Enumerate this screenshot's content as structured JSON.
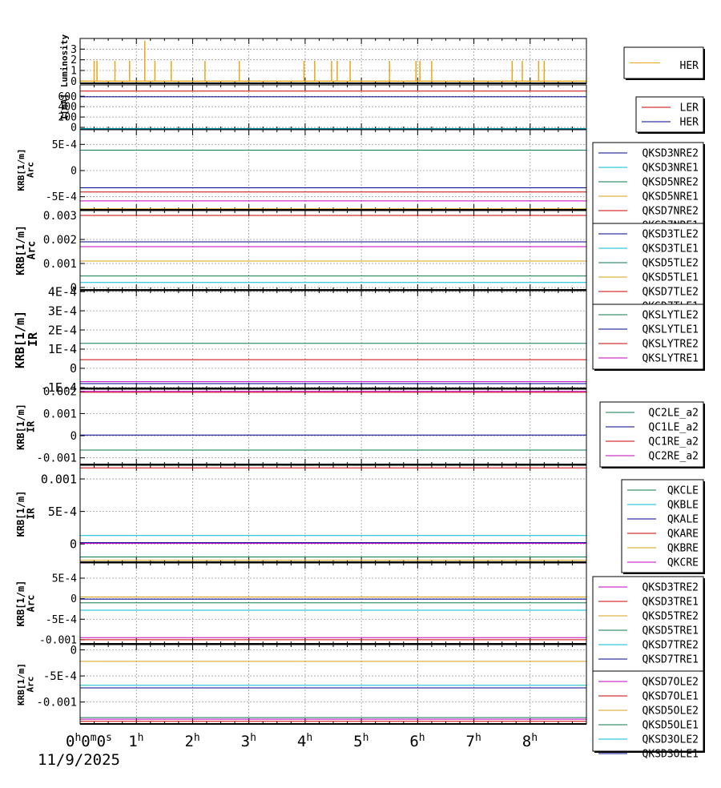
{
  "date_label": "11/9/2025",
  "x_ticks": [
    "0h0m0s",
    "1h",
    "2h",
    "3h",
    "4h",
    "5h",
    "6h",
    "7h",
    "8h"
  ],
  "chart_data": [
    {
      "type": "line",
      "ylabel": "Luminosity",
      "ylim": [
        -0.2,
        4.0
      ],
      "yticks": [
        "0",
        "1",
        "2",
        "3"
      ],
      "ytick_values": [
        0,
        1,
        2,
        3
      ],
      "xlim_hours": [
        0,
        9
      ],
      "grid": true,
      "legend_position": "right",
      "series": [
        {
          "name": "HER",
          "color": "#e6a817",
          "style": "spikes",
          "spikes": [
            [
              0.25,
              1.9
            ],
            [
              0.3,
              1.9
            ],
            [
              0.62,
              1.9
            ],
            [
              0.88,
              1.9
            ],
            [
              1.15,
              3.8
            ],
            [
              1.33,
              1.9
            ],
            [
              1.62,
              1.9
            ],
            [
              2.22,
              1.9
            ],
            [
              2.83,
              1.9
            ],
            [
              3.98,
              1.9
            ],
            [
              4.17,
              1.9
            ],
            [
              4.47,
              1.9
            ],
            [
              4.57,
              1.9
            ],
            [
              4.8,
              1.9
            ],
            [
              5.5,
              1.9
            ],
            [
              5.97,
              1.9
            ],
            [
              6.04,
              1.9
            ],
            [
              6.25,
              1.9
            ],
            [
              7.68,
              1.9
            ],
            [
              7.86,
              1.9
            ],
            [
              8.15,
              1.9
            ],
            [
              8.25,
              1.9
            ]
          ]
        }
      ]
    },
    {
      "type": "line",
      "ylabel": "I[mA]",
      "ylim": [
        -30,
        820
      ],
      "yticks": [
        "0",
        "200",
        "400",
        "600"
      ],
      "ytick_values": [
        0,
        200,
        400,
        600
      ],
      "xlim_hours": [
        0,
        9
      ],
      "grid": true,
      "legend_position": "right",
      "series": [
        {
          "name": "LER",
          "color": "#cc0000",
          "value": 700
        },
        {
          "name": "HER",
          "color": "#00008b",
          "value": 590
        }
      ]
    },
    {
      "type": "line",
      "ylabel": "KRB[1/m] Arc",
      "ylim": [
        -0.00075,
        0.00078
      ],
      "yticks": [
        "5E-4",
        "0",
        "-5E-4"
      ],
      "ytick_values": [
        0.0005,
        0,
        -0.0005
      ],
      "xlim_hours": [
        0,
        9
      ],
      "grid": true,
      "legend_position": "right",
      "series": [
        {
          "name": "QKSD3NRE2",
          "color": "#00008b",
          "value": -0.00033
        },
        {
          "name": "QKSD3NRE1",
          "color": "#00bcd4",
          "value": 0.0008
        },
        {
          "name": "QKSD5NRE2",
          "color": "#0f7a4a",
          "value": 0.00039
        },
        {
          "name": "QKSD5NRE1",
          "color": "#d4a017",
          "value": -0.00073
        },
        {
          "name": "QKSD7NRE2",
          "color": "#cc0000",
          "value": -0.00041
        },
        {
          "name": "QKSD7NRE1",
          "color": "#c000c0",
          "value": -0.00058
        }
      ]
    },
    {
      "type": "line",
      "ylabel": "KRB[1/m] Arc",
      "ylim": [
        -0.0001,
        0.0032
      ],
      "yticks": [
        "0.003",
        "0.002",
        "0.001",
        "0"
      ],
      "ytick_values": [
        0.003,
        0.002,
        0.001,
        0
      ],
      "xlim_hours": [
        0,
        9
      ],
      "grid": true,
      "legend_position": "right",
      "series": [
        {
          "name": "QKSD3TLE2",
          "color": "#00008b",
          "value": 0.0019
        },
        {
          "name": "QKSD3TLE1",
          "color": "#00bcd4",
          "value": 0.00021
        },
        {
          "name": "QKSD5TLE2",
          "color": "#0f7a4a",
          "value": 0.00048
        },
        {
          "name": "QKSD5TLE1",
          "color": "#d4a017",
          "value": 0.0011
        },
        {
          "name": "QKSD7TLE2",
          "color": "#cc0000",
          "value": 0.003
        },
        {
          "name": "QKSD7TLE1",
          "color": "#c000c0",
          "value": 0.0017
        }
      ]
    },
    {
      "type": "line",
      "ylabel": "KRB[1/m] IR",
      "ylim": [
        -0.000105,
        0.000405
      ],
      "yticks": [
        "4E-4",
        "3E-4",
        "2E-4",
        "1E-4",
        "0",
        "-1E-4"
      ],
      "ytick_values": [
        0.0004,
        0.0003,
        0.0002,
        0.0001,
        0,
        -0.0001
      ],
      "xlim_hours": [
        0,
        9
      ],
      "grid": true,
      "legend_position": "right",
      "series": [
        {
          "name": "QKSLYTLE2",
          "color": "#0f7a4a",
          "value": 0.00013
        },
        {
          "name": "QKSLYTLE1",
          "color": "#00008b",
          "value": -8e-05
        },
        {
          "name": "QKSLYTRE2",
          "color": "#cc0000",
          "value": 4.5e-05
        },
        {
          "name": "QKSLYTRE1",
          "color": "#c000c0",
          "value": -7e-05
        }
      ]
    },
    {
      "type": "line",
      "ylabel": "KRB[1/m] IR",
      "ylim": [
        -0.0013,
        0.0021
      ],
      "yticks": [
        "0.002",
        "0.001",
        "0",
        "-0.001"
      ],
      "ytick_values": [
        0.002,
        0.001,
        0,
        -0.001
      ],
      "xlim_hours": [
        0,
        9
      ],
      "grid": true,
      "legend_position": "right",
      "series": [
        {
          "name": "QC2LE_a2",
          "color": "#0f7a4a",
          "value": -0.00065
        },
        {
          "name": "QC1LE_a2",
          "color": "#00008b",
          "value": 3e-05
        },
        {
          "name": "QC1RE_a2",
          "color": "#cc0000",
          "value": 0.00196
        },
        {
          "name": "QC2RE_a2",
          "color": "#c000c0",
          "value": 0.002
        }
      ]
    },
    {
      "type": "line",
      "ylabel": "KRB[1/m] IR",
      "ylim": [
        -0.00028,
        0.00121
      ],
      "yticks": [
        "0.001",
        "5E-4",
        "0"
      ],
      "ytick_values": [
        0.001,
        0.0005,
        0
      ],
      "xlim_hours": [
        0,
        9
      ],
      "grid": true,
      "legend_position": "right",
      "series": [
        {
          "name": "QKCLE",
          "color": "#0f7a4a",
          "value": -0.0002
        },
        {
          "name": "QKBLE",
          "color": "#00bcd4",
          "value": 0.00013
        },
        {
          "name": "QKALE",
          "color": "#00008b",
          "value": 2e-05
        },
        {
          "name": "QKARE",
          "color": "#cc0000",
          "value": 0.00117
        },
        {
          "name": "QKBRE",
          "color": "#d4a017",
          "value": -0.00025
        },
        {
          "name": "QKCRE",
          "color": "#c000c0",
          "value": 1e-05
        }
      ]
    },
    {
      "type": "line",
      "ylabel": "KRB[1/m] Arc",
      "ylim": [
        -0.0011,
        0.00087
      ],
      "yticks": [
        "5E-4",
        "0",
        "-5E-4",
        "-0.001"
      ],
      "ytick_values": [
        0.0005,
        0,
        -0.0005,
        -0.001
      ],
      "xlim_hours": [
        0,
        9
      ],
      "grid": true,
      "legend_position": "right",
      "series": [
        {
          "name": "QKSD3TRE2",
          "color": "#c000c0",
          "value": -0.00095
        },
        {
          "name": "QKSD3TRE1",
          "color": "#cc0000",
          "value": -0.001
        },
        {
          "name": "QKSD5TRE2",
          "color": "#d4a017",
          "value": 4e-05
        },
        {
          "name": "QKSD5TRE1",
          "color": "#0f7a4a",
          "value": -0.0001
        },
        {
          "name": "QKSD7TRE2",
          "color": "#00bcd4",
          "value": -0.00028
        },
        {
          "name": "QKSD7TRE1",
          "color": "#00008b",
          "value": -1e-05
        }
      ]
    },
    {
      "type": "line",
      "ylabel": "KRB[1/m] Arc",
      "ylim": [
        -0.00142,
        0.0001
      ],
      "yticks": [
        "0",
        "-5E-4",
        "-0.001"
      ],
      "ytick_values": [
        0,
        -0.0005,
        -0.001
      ],
      "xlim_hours": [
        0,
        9
      ],
      "grid": true,
      "legend_position": "right",
      "series": [
        {
          "name": "QKSD7OLE2",
          "color": "#c000c0",
          "value": -0.00133
        },
        {
          "name": "QKSD7OLE1",
          "color": "#cc0000",
          "value": -0.00137
        },
        {
          "name": "QKSD5OLE2",
          "color": "#d4a017",
          "value": -0.00022
        },
        {
          "name": "QKSD5OLE1",
          "color": "#0f7a4a",
          "value": -0.0013
        },
        {
          "name": "QKSD3OLE2",
          "color": "#00bcd4",
          "value": -0.00068
        },
        {
          "name": "QKSD3OLE1",
          "color": "#00008b",
          "value": -0.00073
        }
      ]
    }
  ]
}
